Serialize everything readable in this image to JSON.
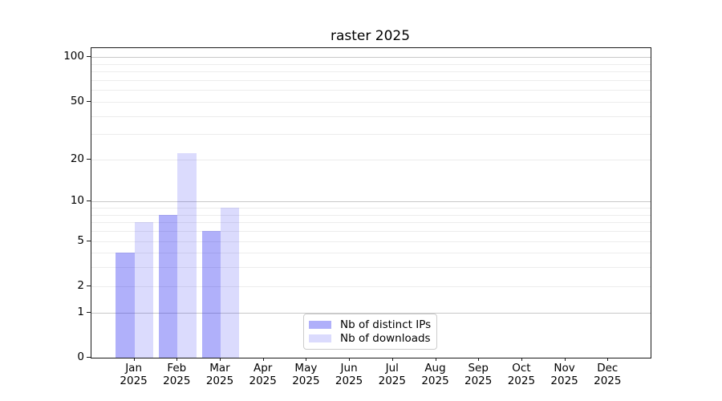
{
  "title": "raster 2025",
  "chart_data": {
    "type": "bar",
    "categories": [
      "Jan 2025",
      "Feb 2025",
      "Mar 2025",
      "Apr 2025",
      "May 2025",
      "Jun 2025",
      "Jul 2025",
      "Aug 2025",
      "Sep 2025",
      "Oct 2025",
      "Nov 2025",
      "Dec 2025"
    ],
    "series": [
      {
        "name": "Nb of distinct IPs",
        "color": "rgba(30,30,240,0.35)",
        "color_hex_on_white": "#b0b0fa",
        "values": [
          4,
          8,
          6,
          0,
          0,
          0,
          0,
          0,
          0,
          0,
          0,
          0
        ]
      },
      {
        "name": "Nb of downloads",
        "color": "rgba(30,30,240,0.16)",
        "color_hex_on_white": "#dbdbfd",
        "values": [
          7,
          22,
          9,
          0,
          0,
          0,
          0,
          0,
          0,
          0,
          0,
          0
        ]
      }
    ],
    "yscale": "log1p",
    "ylim": [
      0,
      115
    ],
    "yticks_labeled": [
      100,
      50,
      20,
      10,
      5,
      2,
      1,
      0
    ],
    "gridlines_major": [
      1,
      10,
      100
    ],
    "gridlines_minor": [
      2,
      3,
      4,
      5,
      6,
      7,
      8,
      9,
      20,
      30,
      40,
      50,
      60,
      70,
      80,
      90
    ],
    "xlabel": "",
    "ylabel": "",
    "grid": "both",
    "legend_position": "lower center",
    "grid_major_color": "#c9c9c9",
    "grid_minor_color": "#ececec"
  }
}
